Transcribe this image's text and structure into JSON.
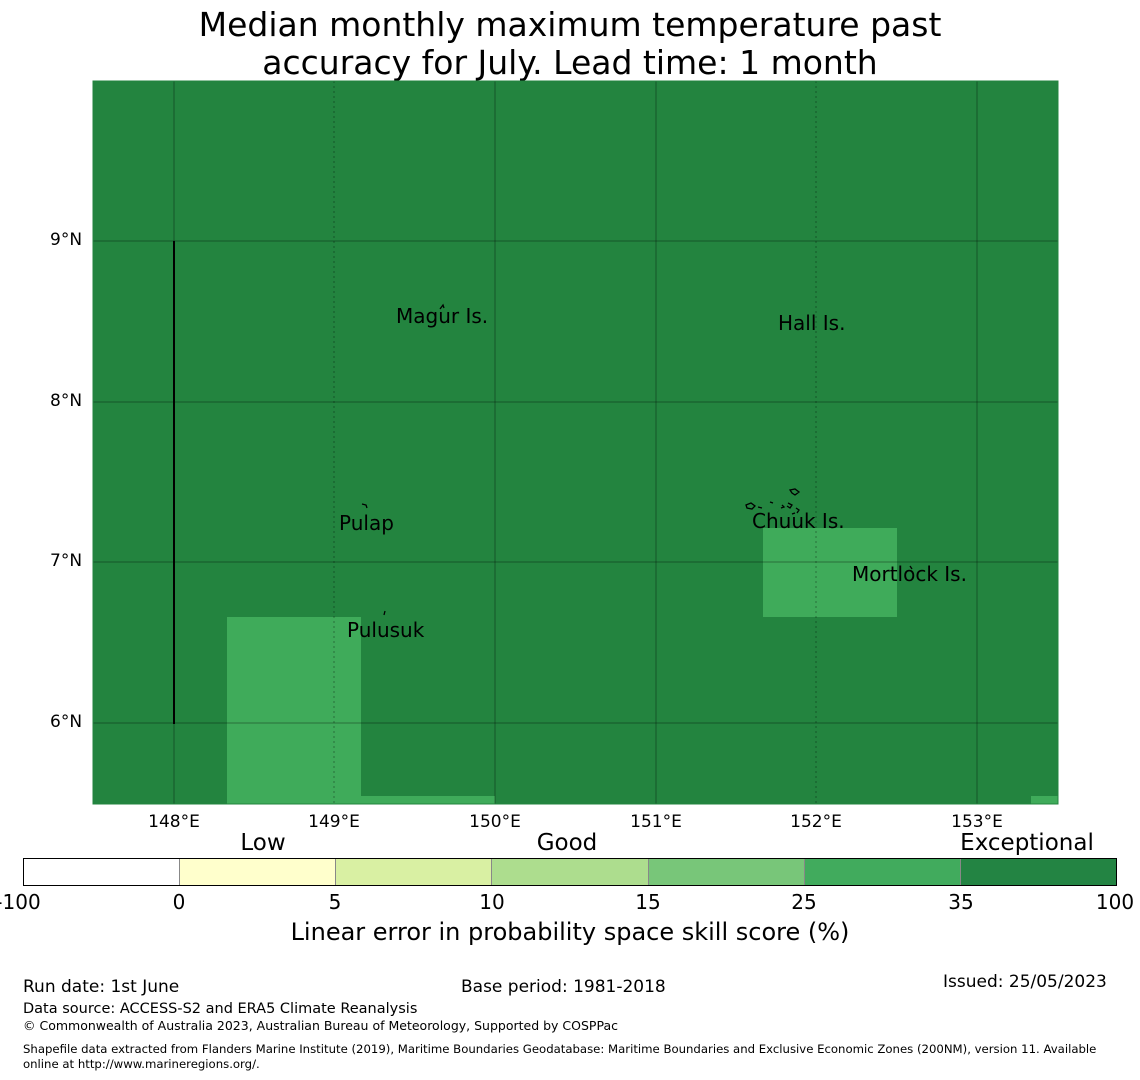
{
  "title_line1": "Median monthly maximum temperature past",
  "title_line2": "accuracy for July. Lead time: 1 month",
  "map": {
    "background_color": "#23843f",
    "patch_color": "#3fab5a",
    "lat_ticks": [
      "9°N",
      "8°N",
      "7°N",
      "6°N"
    ],
    "lon_ticks": [
      "148°E",
      "149°E",
      "150°E",
      "151°E",
      "152°E",
      "153°E"
    ],
    "places": [
      "Magur Is.",
      "Hall Is.",
      "Pulap",
      "Chuuk Is.",
      "Mortlock Is.",
      "Pulusuk"
    ]
  },
  "legend": {
    "categories": [
      "Low",
      "Good",
      "Exceptional"
    ],
    "ticks": [
      "-100",
      "0",
      "5",
      "10",
      "15",
      "25",
      "35",
      "100"
    ],
    "colors": [
      "#ffffff",
      "#ffffcc",
      "#d9f0a3",
      "#addd8e",
      "#78c679",
      "#41ab5d",
      "#238443"
    ],
    "label": "Linear error in probability space skill score (%)"
  },
  "footer": {
    "run_date": "Run date: 1st June",
    "base_period": "Base period: 1981-2018",
    "issued": "Issued: 25/05/2023",
    "data_source": "Data source: ACCESS-S2 and ERA5 Climate Reanalysis",
    "copyright": "© Commonwealth of Australia 2023, Australian Bureau of Meteorology, Supported by COSPPac",
    "shapefile_line1": "Shapefile data extracted from Flanders Marine Institute (2019), Maritime Boundaries Geodatabase: Maritime Boundaries and Exclusive Economic Zones (200NM), version 11. Available",
    "shapefile_line2": "online at http://www.marineregions.org/."
  }
}
